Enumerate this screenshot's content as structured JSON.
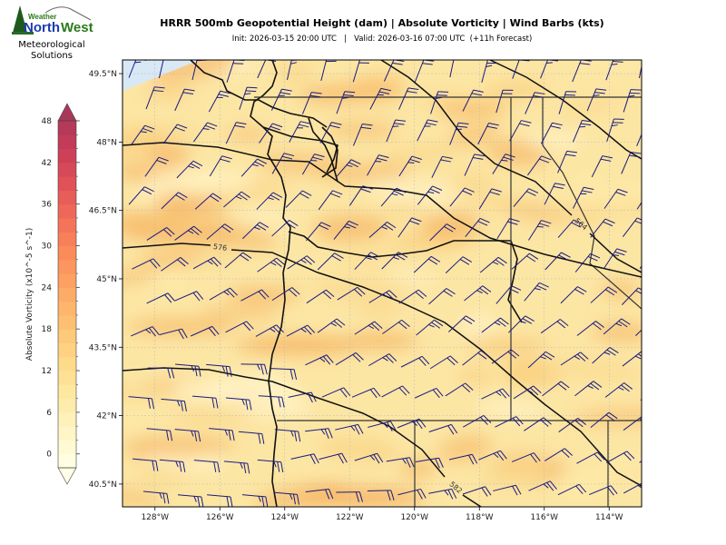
{
  "header": {
    "title": "HRRR 500mb Geopotential Height (dam) | Absolute Vorticity | Wind Barbs (kts)",
    "subtitle": "Init: 2026-03-15 20:00 UTC   |   Valid: 2026-03-16 07:00 UTC  (+11h Forecast)"
  },
  "logo": {
    "top_word": "Weather",
    "brand_north": "North",
    "brand_west": "West",
    "subtitle_line1": "Meteorological",
    "subtitle_line2": "Solutions"
  },
  "chart_data": {
    "type": "heatmap",
    "title": "HRRR 500mb Geopotential Height (dam) | Absolute Vorticity | Wind Barbs (kts)",
    "x_ticks": [
      "128°W",
      "126°W",
      "124°W",
      "122°W",
      "120°W",
      "118°W",
      "116°W",
      "114°W"
    ],
    "y_ticks": [
      "49.5°N",
      "48°N",
      "46.5°N",
      "45°N",
      "43.5°N",
      "42°N",
      "40.5°N"
    ],
    "xlim": [
      -129,
      -113
    ],
    "ylim": [
      40,
      49.8
    ],
    "colorbar": {
      "label": "Absolute Vorticity (x10^-5 s^-1)",
      "ticks": [
        0,
        6,
        12,
        18,
        24,
        30,
        36,
        42,
        48
      ],
      "range": [
        -2,
        48
      ],
      "extend": "both",
      "colors": [
        "#fffee0",
        "#fff3c0",
        "#fee8a0",
        "#fed686",
        "#fdc072",
        "#fca763",
        "#fb8b5a",
        "#f26e5a",
        "#e05158",
        "#c83c58",
        "#a8385a"
      ]
    },
    "contour_labels": [
      "576",
      "564",
      "582"
    ],
    "colors": {
      "barbs": "#1a1a80",
      "contours": "#111111",
      "water_nodata": "#d8e8f5"
    },
    "grid": true
  }
}
